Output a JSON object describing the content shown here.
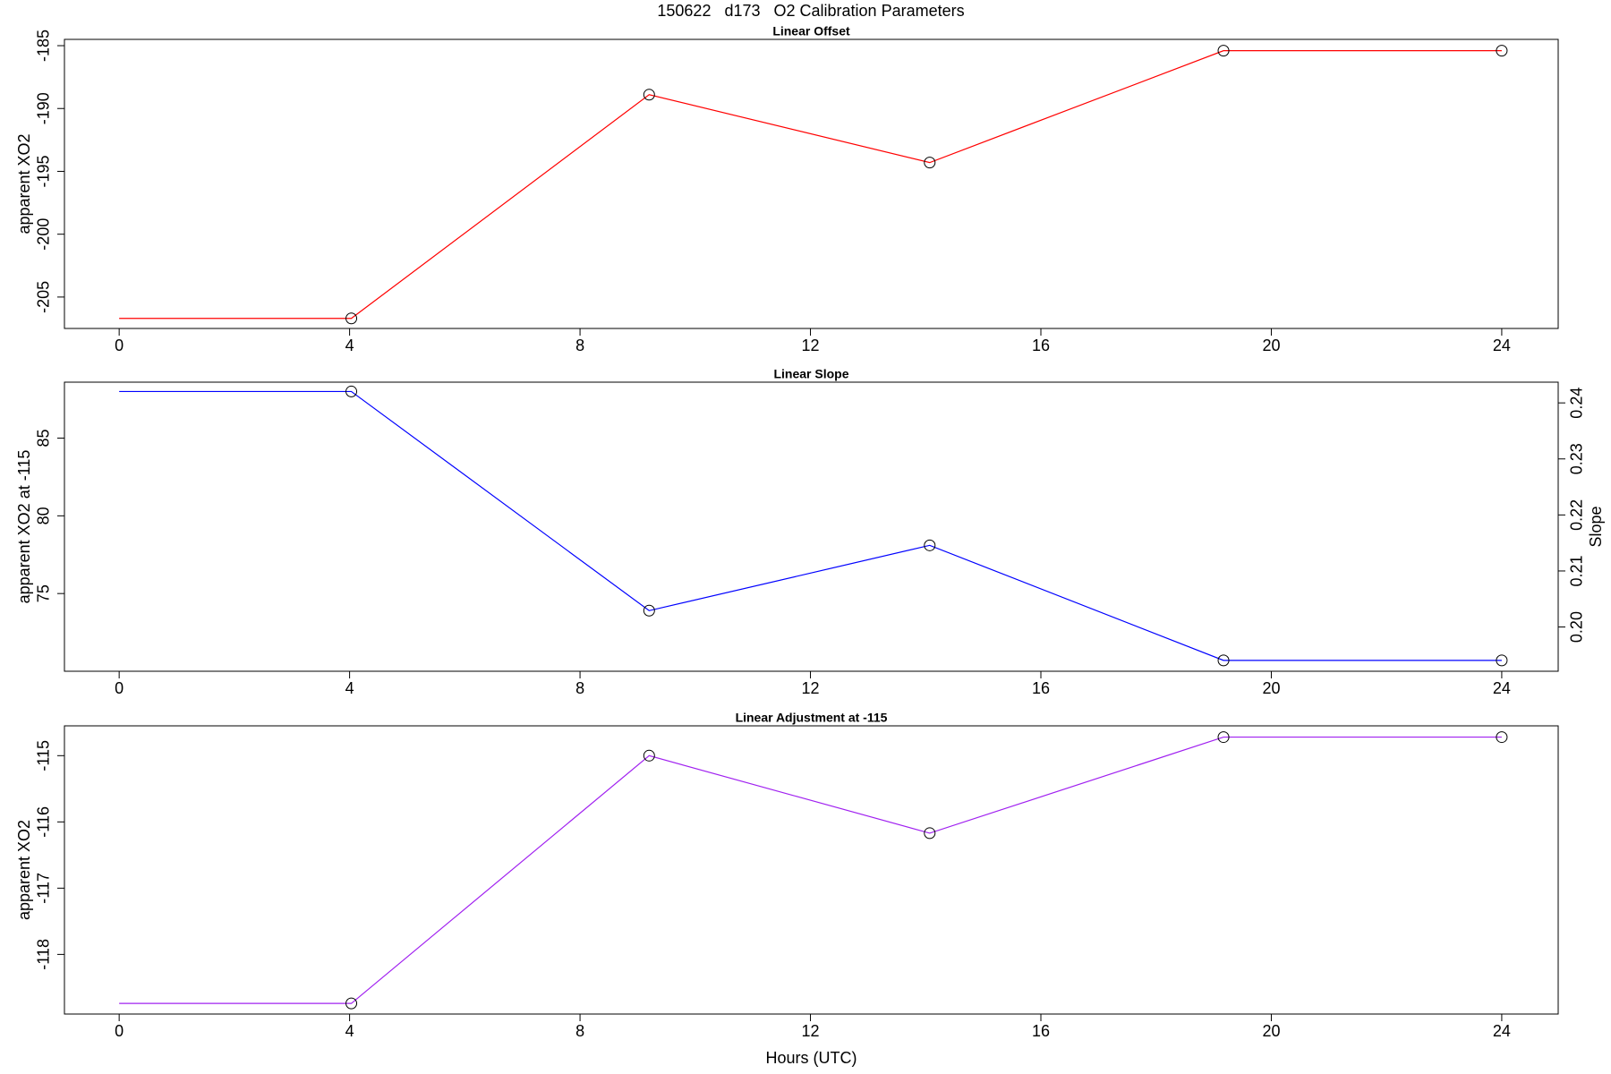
{
  "title": "150622   d173   O2 Calibration Parameters",
  "chart_data": [
    {
      "type": "line",
      "title": "Linear Offset",
      "ylabel": "apparent XO2",
      "color": "#ff0000",
      "x": [
        0,
        4.03,
        9.2,
        14.07,
        19.17,
        24
      ],
      "values": [
        -206.7,
        -206.7,
        -188.9,
        -194.3,
        -185.4,
        -185.4
      ],
      "first_point_marker": false,
      "xlim": [
        -0.95,
        24.98
      ],
      "xticks": [
        0,
        4,
        8,
        12,
        16,
        20,
        24
      ],
      "ylim": [
        -207.5,
        -184.5
      ],
      "yticks": [
        -205,
        -200,
        -195,
        -190,
        -185
      ]
    },
    {
      "type": "line",
      "title": "Linear Slope",
      "ylabel": "apparent XO2 at -115",
      "y2label": "Slope",
      "color": "#0000ff",
      "x": [
        0,
        4.03,
        9.2,
        14.07,
        19.17,
        24
      ],
      "values": [
        88.0,
        88.0,
        73.9,
        78.1,
        70.7,
        70.7
      ],
      "first_point_marker": false,
      "xlim": [
        -0.95,
        24.98
      ],
      "xticks": [
        0,
        4,
        8,
        12,
        16,
        20,
        24
      ],
      "ylim": [
        70.0,
        88.6
      ],
      "yticks": [
        75,
        80,
        85
      ],
      "y2lim": [
        0.1921,
        0.2437
      ],
      "y2ticks": [
        {
          "value": 0.2,
          "label": "0.20"
        },
        0.21,
        0.22,
        0.23,
        0.24
      ]
    },
    {
      "type": "line",
      "title": "Linear Adjustment at -115",
      "ylabel": "apparent XO2",
      "xlabel": "Hours (UTC)",
      "color": "#a020f0",
      "x": [
        0,
        4.03,
        9.2,
        14.07,
        19.17,
        24
      ],
      "values": [
        -118.74,
        -118.74,
        -115.0,
        -116.17,
        -114.72,
        -114.72
      ],
      "first_point_marker": false,
      "xlim": [
        -0.95,
        24.98
      ],
      "xticks": [
        0,
        4,
        8,
        12,
        16,
        20,
        24
      ],
      "ylim": [
        -118.9,
        -114.55
      ],
      "yticks": [
        -118,
        -117,
        -116,
        -115
      ]
    }
  ]
}
